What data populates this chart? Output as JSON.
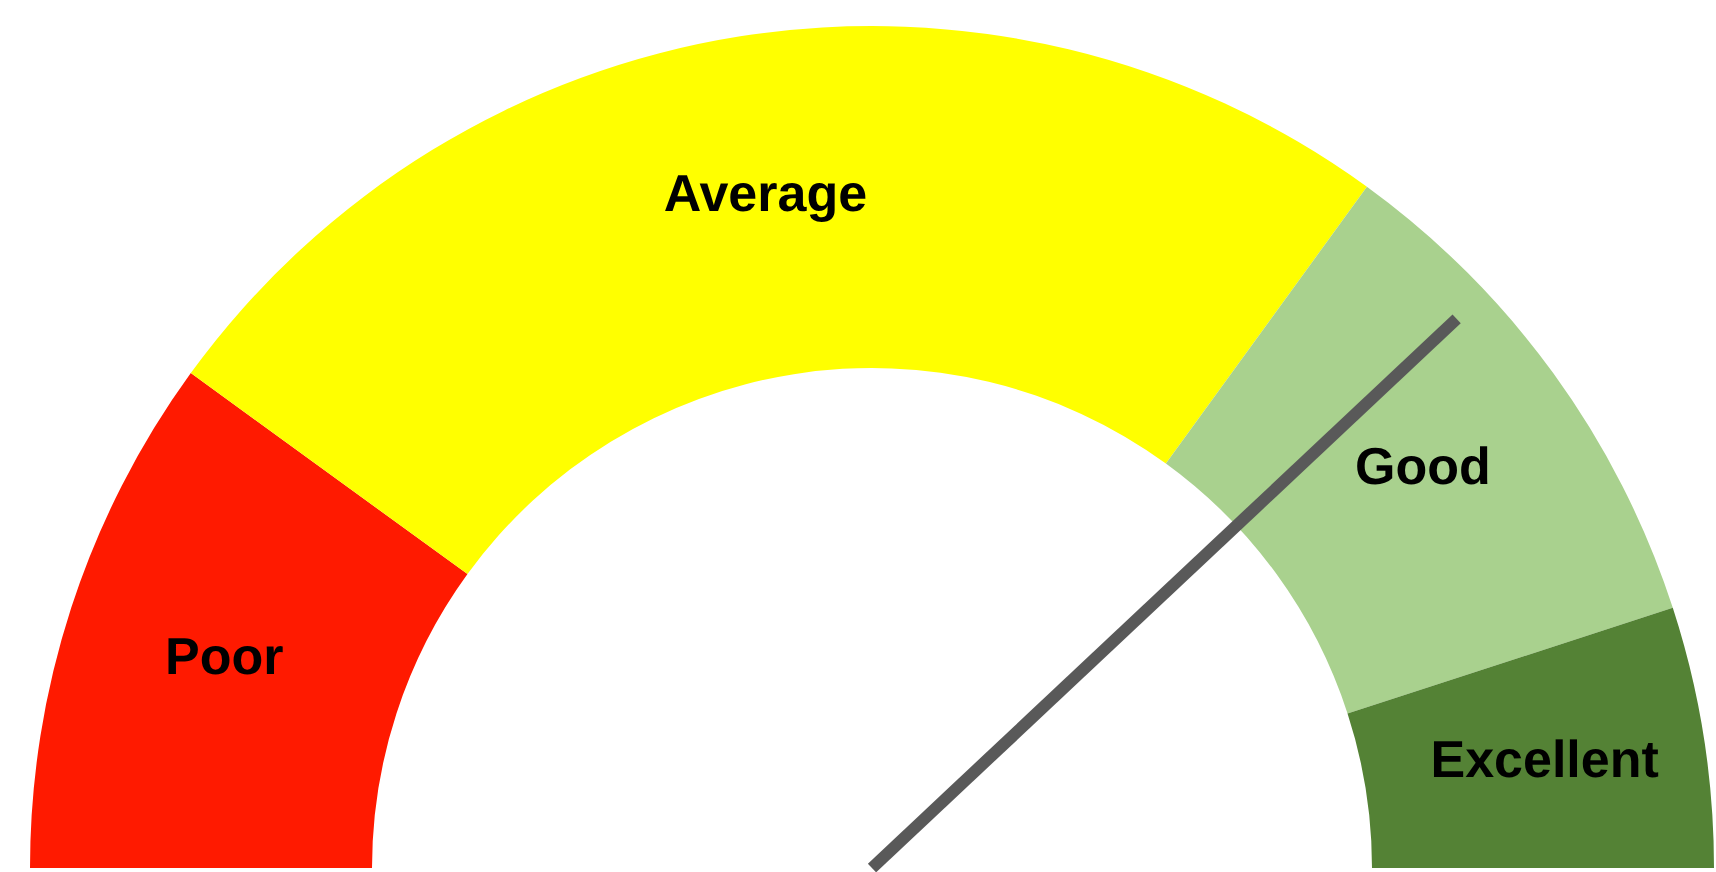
{
  "chart_data": {
    "type": "donut",
    "categories": [
      "Poor",
      "Average",
      "Good",
      "Excellent"
    ],
    "values": [
      20,
      50,
      20,
      10
    ],
    "colors": [
      "#ff1a00",
      "#ffff00",
      "#a9d18e",
      "#548235"
    ],
    "needle": "Good"
  }
}
